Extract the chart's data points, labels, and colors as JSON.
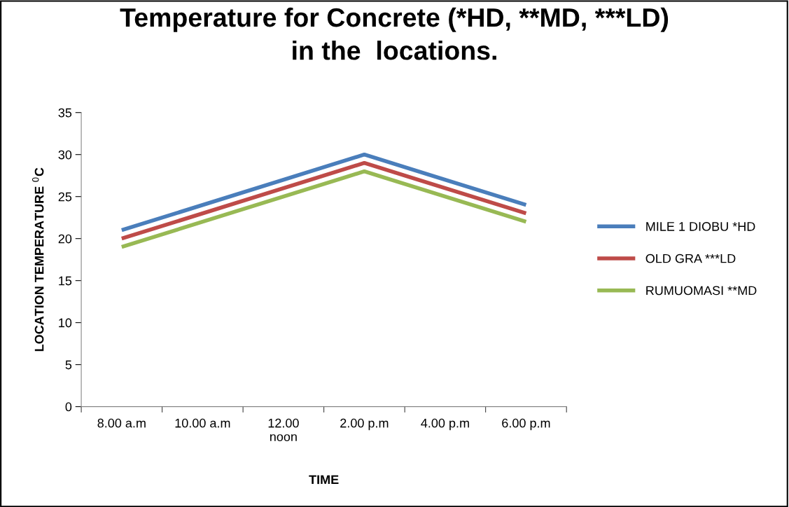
{
  "chart_data": {
    "type": "line",
    "title": "Temperature for Concrete (*HD, **MD, ***LD)\nin the  locations.",
    "xlabel": "TIME",
    "ylabel": "LOCATION TEMPERATURE $^{0}$C",
    "categories": [
      "8.00 a.m",
      "10.00 a.m",
      "12.00\nnoon",
      "2.00 p.m",
      "4.00 p.m",
      "6.00 p.m"
    ],
    "series": [
      {
        "name": "MILE 1 DIOBU *HD",
        "color": "#4a7ebb",
        "values": [
          21,
          null,
          null,
          30,
          null,
          24
        ]
      },
      {
        "name": "OLD GRA ***LD",
        "color": "#be4b48",
        "values": [
          20,
          null,
          null,
          29,
          null,
          23
        ]
      },
      {
        "name": "RUMUOMASI **MD",
        "color": "#98b954",
        "values": [
          19,
          null,
          null,
          28,
          null,
          22
        ]
      }
    ],
    "ylim": [
      0,
      35
    ],
    "yticks": [
      0,
      5,
      10,
      15,
      20,
      25,
      30,
      35
    ],
    "grid": false,
    "legend": "right",
    "marker": "none",
    "line_style": "solid"
  }
}
